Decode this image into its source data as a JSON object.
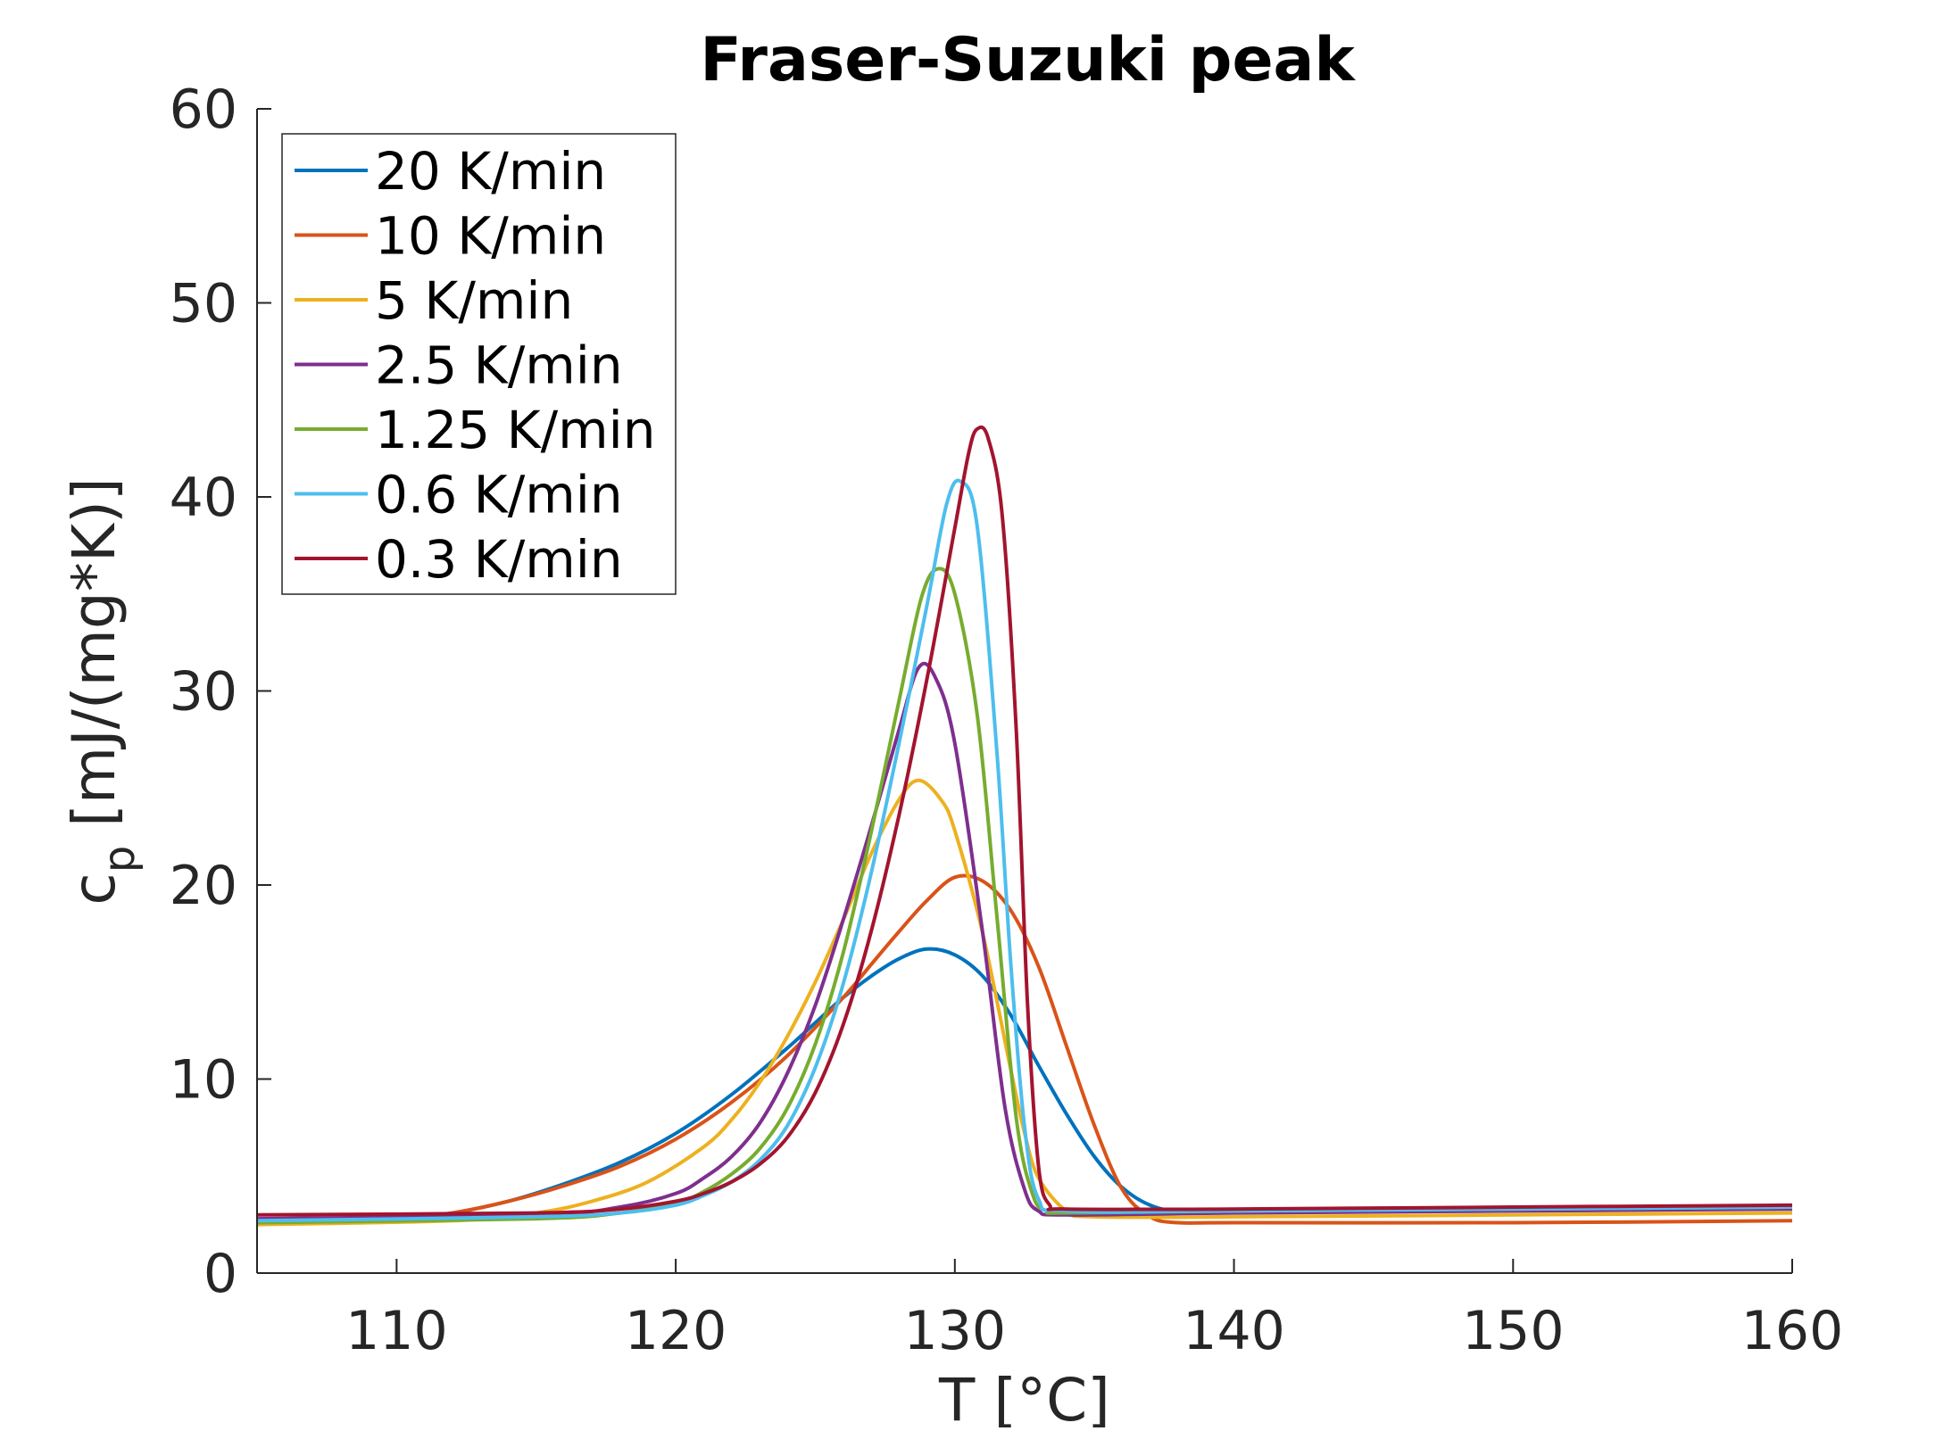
{
  "chart_data": {
    "type": "line",
    "title": "Fraser-Suzuki peak",
    "xlabel": "T [°C]",
    "ylabel_main": "c",
    "ylabel_sub": "p",
    "ylabel_unit": " [mJ/(mg*K)]",
    "xlim": [
      105,
      160
    ],
    "ylim": [
      0,
      60
    ],
    "xticks": [
      110,
      120,
      130,
      140,
      150,
      160
    ],
    "yticks": [
      0,
      10,
      20,
      30,
      40,
      50,
      60
    ],
    "grid": false,
    "legend_position": "top-left",
    "series": [
      {
        "name": "20 K/min",
        "color": "#0072BD",
        "x": [
          105,
          110,
          112,
          114,
          116,
          118,
          120,
          122,
          124,
          125,
          126,
          127,
          128,
          129,
          130,
          131,
          132,
          133,
          134,
          135,
          136,
          137,
          138,
          140,
          150,
          160
        ],
        "y": [
          2.6,
          2.8,
          3.1,
          3.7,
          4.6,
          5.7,
          7.2,
          9.2,
          11.6,
          12.9,
          14.2,
          15.3,
          16.2,
          16.7,
          16.4,
          15.3,
          13.3,
          10.7,
          8.2,
          6.0,
          4.4,
          3.5,
          3.2,
          3.2,
          3.3,
          3.4
        ]
      },
      {
        "name": "10 K/min",
        "color": "#D95319",
        "x": [
          105,
          110,
          112,
          114,
          116,
          118,
          120,
          122,
          124,
          126,
          127,
          128,
          129,
          130,
          131,
          132,
          133,
          134,
          135,
          136,
          137,
          138,
          140,
          150,
          160
        ],
        "y": [
          2.5,
          2.8,
          3.1,
          3.7,
          4.5,
          5.5,
          6.9,
          8.8,
          11.2,
          14.2,
          15.9,
          17.6,
          19.2,
          20.4,
          20.2,
          18.7,
          15.8,
          11.7,
          7.6,
          4.3,
          2.9,
          2.6,
          2.6,
          2.6,
          2.7
        ]
      },
      {
        "name": "5 K/min",
        "color": "#EDB120",
        "x": [
          105,
          112,
          115,
          117,
          119,
          121,
          122,
          123,
          124,
          125,
          126,
          127,
          128,
          128.7,
          129.5,
          130,
          131,
          132,
          132.5,
          133,
          134,
          135,
          140,
          150,
          160
        ],
        "y": [
          2.5,
          2.7,
          3.1,
          3.7,
          4.7,
          6.5,
          7.9,
          9.8,
          12.2,
          15.0,
          18.2,
          21.6,
          24.4,
          25.4,
          24.4,
          22.8,
          17.5,
          10.5,
          7.2,
          4.9,
          3.2,
          2.9,
          2.9,
          3.0,
          3.1
        ]
      },
      {
        "name": "2.5 K/min",
        "color": "#7E2F8E",
        "x": [
          105,
          115,
          118,
          120,
          121,
          122,
          123,
          124,
          125,
          126,
          127,
          128,
          128.7,
          129.3,
          130,
          131,
          131.8,
          132.5,
          133,
          134,
          140,
          150,
          160
        ],
        "y": [
          2.8,
          3.0,
          3.4,
          4.1,
          4.9,
          6.0,
          7.7,
          10.3,
          13.8,
          18.2,
          23.0,
          28.0,
          31.2,
          30.7,
          27.3,
          17.5,
          8.5,
          4.3,
          3.2,
          3.0,
          3.1,
          3.2,
          3.3
        ]
      },
      {
        "name": "1.25 K/min",
        "color": "#77AC30",
        "x": [
          105,
          115,
          118,
          120,
          121,
          122,
          123,
          124,
          125,
          126,
          127,
          128,
          128.8,
          129.4,
          130,
          130.8,
          131.5,
          132.2,
          132.8,
          133.3,
          134,
          140,
          150,
          160
        ],
        "y": [
          2.6,
          2.8,
          3.1,
          3.6,
          4.2,
          5.1,
          6.4,
          8.5,
          11.8,
          16.5,
          22.7,
          29.5,
          34.8,
          36.3,
          35.0,
          28.8,
          18.5,
          8.0,
          4.0,
          3.2,
          3.1,
          3.2,
          3.3,
          3.4
        ]
      },
      {
        "name": "0.6 K/min",
        "color": "#4DBEEE",
        "x": [
          105,
          115,
          118,
          120,
          121,
          122,
          123,
          124,
          125,
          126,
          127,
          128,
          129,
          129.7,
          130.2,
          130.8,
          131.5,
          132,
          132.5,
          133,
          134,
          140,
          150,
          160
        ],
        "y": [
          2.7,
          2.9,
          3.1,
          3.5,
          4.0,
          4.7,
          5.8,
          7.6,
          10.6,
          14.9,
          20.6,
          27.3,
          34.4,
          39.6,
          40.8,
          38.5,
          27.0,
          16.0,
          7.5,
          3.8,
          3.2,
          3.2,
          3.3,
          3.4
        ]
      },
      {
        "name": "0.3 K/min",
        "color": "#A2142F",
        "x": [
          105,
          115,
          118,
          120,
          121,
          122,
          123,
          124,
          125,
          126,
          127,
          128,
          129,
          130,
          130.5,
          130.8,
          131.2,
          131.7,
          132.2,
          132.6,
          133,
          133.4,
          134,
          140,
          150,
          160
        ],
        "y": [
          3.0,
          3.1,
          3.3,
          3.7,
          4.1,
          4.7,
          5.6,
          7.0,
          9.3,
          12.8,
          17.6,
          23.6,
          30.6,
          38.4,
          42.3,
          43.5,
          43.0,
          39.0,
          28.0,
          14.0,
          5.5,
          3.5,
          3.3,
          3.3,
          3.4,
          3.5
        ]
      }
    ]
  }
}
